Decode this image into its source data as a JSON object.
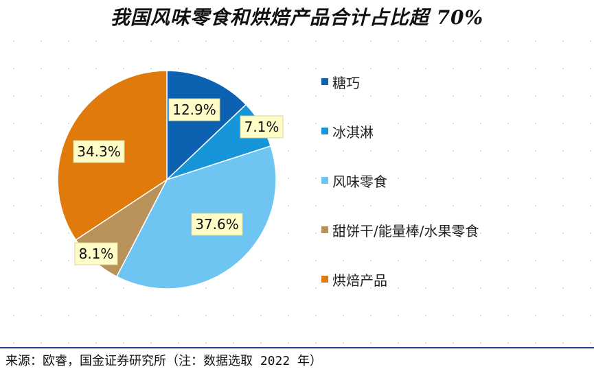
{
  "chart_data": {
    "type": "pie",
    "title": "我国风味零食和烘焙产品合计占比超 70%",
    "slices": [
      {
        "label": "糖巧",
        "value": 12.9,
        "display": "12.9%",
        "color": "#0c62b0"
      },
      {
        "label": "冰淇淋",
        "value": 7.1,
        "display": "7.1%",
        "color": "#1696d8"
      },
      {
        "label": "风味零食",
        "value": 37.6,
        "display": "37.6%",
        "color": "#6ec5f2"
      },
      {
        "label": "甜饼干/能量棒/水果零食",
        "value": 8.1,
        "display": "8.1%",
        "color": "#b8925a"
      },
      {
        "label": "烘焙产品",
        "value": 34.3,
        "display": "34.3%",
        "color": "#e07a0a"
      }
    ],
    "legend_position": "right"
  },
  "source_note": "来源：欧睿，国金证券研究所（注：数据选取 2022 年）"
}
